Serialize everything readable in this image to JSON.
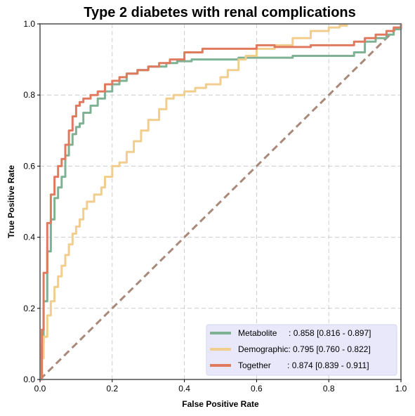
{
  "chart_data": {
    "type": "line",
    "title": "Type 2 diabetes with renal complications",
    "xlabel": "False Positive Rate",
    "ylabel": "True Positive Rate",
    "xlim": [
      0.0,
      1.0
    ],
    "ylim": [
      0.0,
      1.0
    ],
    "x_ticks": [
      "0.0",
      "0.2",
      "0.4",
      "0.6",
      "0.8",
      "1.0"
    ],
    "y_ticks": [
      "0.0",
      "0.2",
      "0.4",
      "0.6",
      "0.8",
      "1.0"
    ],
    "grid": true,
    "legend_position": "bottom-right",
    "series": [
      {
        "name": "Metabolite",
        "legend_label": "Metabolite     : 0.858 [0.816 - 0.897]",
        "color": "#7fb294",
        "x": [
          0.0,
          0.005,
          0.01,
          0.02,
          0.03,
          0.04,
          0.05,
          0.06,
          0.07,
          0.08,
          0.09,
          0.1,
          0.11,
          0.12,
          0.14,
          0.16,
          0.18,
          0.2,
          0.22,
          0.24,
          0.27,
          0.3,
          0.35,
          0.38,
          0.42,
          0.48,
          0.55,
          0.6,
          0.7,
          0.8,
          0.84,
          0.87,
          0.9,
          0.93,
          0.96,
          0.98,
          1.0
        ],
        "y": [
          0.0,
          0.1,
          0.22,
          0.36,
          0.45,
          0.51,
          0.54,
          0.57,
          0.63,
          0.66,
          0.69,
          0.71,
          0.72,
          0.75,
          0.77,
          0.79,
          0.81,
          0.83,
          0.84,
          0.86,
          0.87,
          0.88,
          0.89,
          0.895,
          0.9,
          0.9,
          0.905,
          0.905,
          0.91,
          0.91,
          0.91,
          0.92,
          0.95,
          0.96,
          0.97,
          0.985,
          1.0
        ]
      },
      {
        "name": "Demographic",
        "legend_label": "Demographic: 0.795 [0.760 - 0.822]",
        "color": "#f2ce8e",
        "x": [
          0.0,
          0.005,
          0.01,
          0.02,
          0.03,
          0.04,
          0.05,
          0.06,
          0.07,
          0.08,
          0.09,
          0.1,
          0.11,
          0.12,
          0.13,
          0.15,
          0.17,
          0.18,
          0.2,
          0.22,
          0.24,
          0.26,
          0.28,
          0.3,
          0.33,
          0.35,
          0.37,
          0.4,
          0.43,
          0.46,
          0.5,
          0.52,
          0.55,
          0.57,
          0.6,
          0.65,
          0.7,
          0.75,
          0.78,
          0.8,
          0.83,
          0.85
        ],
        "y": [
          0.0,
          0.06,
          0.12,
          0.18,
          0.22,
          0.26,
          0.29,
          0.32,
          0.35,
          0.38,
          0.41,
          0.43,
          0.45,
          0.48,
          0.5,
          0.52,
          0.54,
          0.57,
          0.6,
          0.61,
          0.64,
          0.67,
          0.7,
          0.73,
          0.76,
          0.79,
          0.8,
          0.81,
          0.82,
          0.83,
          0.85,
          0.87,
          0.9,
          0.91,
          0.93,
          0.94,
          0.96,
          0.98,
          0.98,
          0.99,
          0.995,
          1.0
        ]
      },
      {
        "name": "Together",
        "legend_label": "Together       : 0.874 [0.839 - 0.911]",
        "color": "#e07a5f",
        "x": [
          0.0,
          0.005,
          0.01,
          0.02,
          0.03,
          0.04,
          0.05,
          0.06,
          0.07,
          0.08,
          0.09,
          0.1,
          0.11,
          0.12,
          0.14,
          0.16,
          0.18,
          0.2,
          0.22,
          0.24,
          0.27,
          0.3,
          0.33,
          0.36,
          0.4,
          0.45,
          0.5,
          0.55,
          0.6,
          0.65,
          0.7,
          0.75,
          0.8,
          0.84,
          0.87,
          0.9,
          0.93,
          0.96,
          0.98,
          1.0
        ],
        "y": [
          0.0,
          0.14,
          0.3,
          0.44,
          0.52,
          0.57,
          0.6,
          0.62,
          0.66,
          0.7,
          0.74,
          0.77,
          0.78,
          0.79,
          0.8,
          0.81,
          0.83,
          0.84,
          0.85,
          0.86,
          0.87,
          0.88,
          0.89,
          0.9,
          0.92,
          0.93,
          0.93,
          0.93,
          0.94,
          0.935,
          0.935,
          0.94,
          0.94,
          0.94,
          0.95,
          0.96,
          0.97,
          0.98,
          0.99,
          1.0
        ]
      }
    ],
    "reference_line": {
      "x": [
        0.0,
        1.0
      ],
      "y": [
        0.0,
        1.0
      ],
      "color": "#a98a7a",
      "style": "dashed"
    },
    "colors": {
      "legend_background": "#e8e8fa",
      "frame": "#7a7a7a",
      "grid": "#cccccc"
    }
  }
}
